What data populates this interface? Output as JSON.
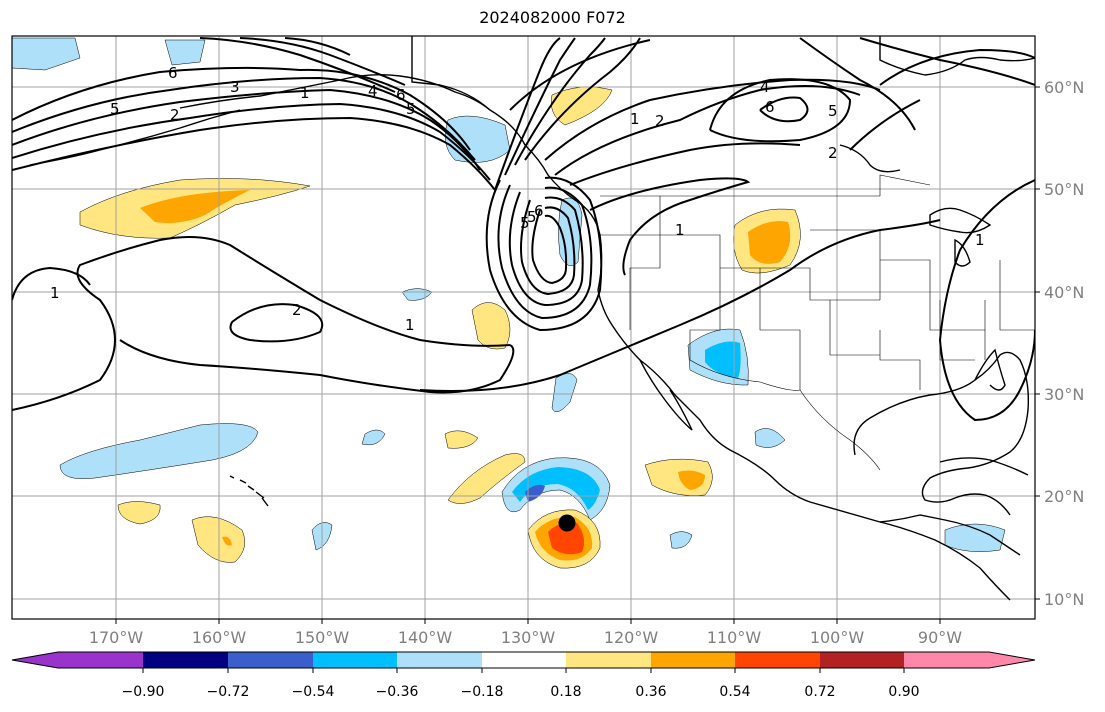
{
  "title": "2024082000 F072",
  "lon_labels": [
    "170°W",
    "160°W",
    "150°W",
    "140°W",
    "130°W",
    "120°W",
    "110°W",
    "100°W",
    "90°W"
  ],
  "lat_labels": [
    "60°N",
    "50°N",
    "40°N",
    "30°N",
    "20°N",
    "10°N"
  ],
  "colorbar": {
    "tick_labels": [
      "−0.90",
      "−0.72",
      "−0.54",
      "−0.36",
      "−0.18",
      "0.18",
      "0.36",
      "0.54",
      "0.72",
      "0.90"
    ],
    "colors": [
      "#9933cc",
      "#000080",
      "#3a5fcd",
      "#00bfff",
      "#aee0fa",
      "#ffffff",
      "#ffe680",
      "#ffa500",
      "#ff4500",
      "#b22222",
      "#ff88aa"
    ]
  },
  "contour_labels": [
    "5",
    "6",
    "3",
    "2",
    "1",
    "4",
    "6",
    "5",
    "5",
    "1",
    "2",
    "4",
    "6",
    "5",
    "2",
    "6",
    "5",
    "1",
    "1",
    "2",
    "1",
    "1"
  ],
  "map_colors": {
    "land_line": "#000000",
    "grid": "#a0a0a0",
    "contour": "#000000",
    "storm_marker": "#000000"
  }
}
